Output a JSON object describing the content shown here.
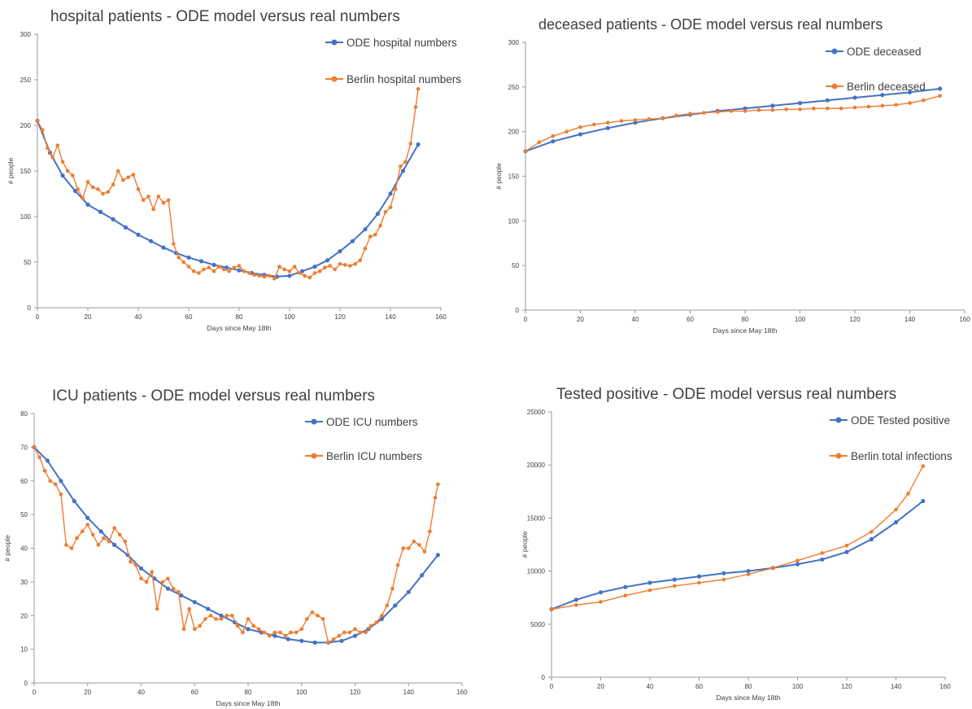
{
  "colors": {
    "ode": "#4472C4",
    "berlin": "#ED7D31",
    "axis": "#999999",
    "text": "#404040"
  },
  "chart_data": [
    {
      "type": "line",
      "title": "hospital patients - ODE model versus real numbers",
      "xlabel": "Days since May 18th",
      "ylabel": "# people",
      "xlim": [
        0,
        160
      ],
      "ylim": [
        0,
        300
      ],
      "xticks": [
        0,
        20,
        40,
        60,
        80,
        100,
        120,
        140,
        160
      ],
      "yticks": [
        0,
        50,
        100,
        150,
        200,
        250,
        300
      ],
      "series": [
        {
          "name": "ODE hospital numbers",
          "x": [
            0,
            5,
            10,
            15,
            20,
            25,
            30,
            35,
            40,
            45,
            50,
            55,
            60,
            65,
            70,
            75,
            80,
            85,
            90,
            95,
            100,
            105,
            110,
            115,
            120,
            125,
            130,
            135,
            140,
            145,
            151
          ],
          "y": [
            205,
            170,
            145,
            128,
            113,
            105,
            97,
            88,
            80,
            73,
            66,
            60,
            55,
            51,
            47,
            44,
            41,
            38,
            36,
            34,
            35,
            40,
            45,
            52,
            62,
            73,
            86,
            103,
            125,
            150,
            179
          ]
        },
        {
          "name": "Berlin hospital numbers",
          "x": [
            0,
            2,
            4,
            6,
            8,
            10,
            12,
            14,
            16,
            18,
            20,
            22,
            24,
            26,
            28,
            30,
            32,
            34,
            36,
            38,
            40,
            42,
            44,
            46,
            48,
            50,
            52,
            54,
            56,
            58,
            60,
            62,
            64,
            66,
            68,
            70,
            72,
            74,
            76,
            78,
            80,
            82,
            84,
            86,
            88,
            90,
            92,
            94,
            96,
            98,
            100,
            102,
            104,
            106,
            108,
            110,
            112,
            114,
            116,
            118,
            120,
            122,
            124,
            126,
            128,
            130,
            132,
            134,
            136,
            138,
            140,
            142,
            144,
            146,
            148,
            150,
            151
          ],
          "y": [
            205,
            195,
            175,
            165,
            178,
            160,
            150,
            145,
            130,
            120,
            138,
            132,
            130,
            125,
            127,
            135,
            150,
            140,
            143,
            146,
            130,
            118,
            122,
            108,
            122,
            115,
            118,
            70,
            55,
            50,
            45,
            40,
            38,
            42,
            44,
            40,
            45,
            42,
            40,
            44,
            46,
            40,
            38,
            36,
            35,
            34,
            35,
            32,
            45,
            42,
            40,
            45,
            38,
            35,
            33,
            38,
            40,
            44,
            46,
            42,
            48,
            47,
            46,
            48,
            52,
            65,
            78,
            80,
            90,
            105,
            110,
            130,
            155,
            160,
            180,
            220,
            240
          ]
        }
      ],
      "legend": "top-right"
    },
    {
      "type": "line",
      "title": "deceased patients - ODE model versus real numbers",
      "xlabel": "Days since May 18th",
      "ylabel": "# people",
      "xlim": [
        0,
        160
      ],
      "ylim": [
        0,
        300
      ],
      "xticks": [
        0,
        20,
        40,
        60,
        80,
        100,
        120,
        140,
        160
      ],
      "yticks": [
        0,
        50,
        100,
        150,
        200,
        250,
        300
      ],
      "series": [
        {
          "name": "ODE deceased",
          "x": [
            0,
            10,
            20,
            30,
            40,
            50,
            60,
            70,
            80,
            90,
            100,
            110,
            120,
            130,
            140,
            151
          ],
          "y": [
            178,
            189,
            197,
            204,
            210,
            215,
            219,
            223,
            226,
            229,
            232,
            235,
            238,
            241,
            244,
            248
          ]
        },
        {
          "name": "Berlin deceased",
          "x": [
            0,
            5,
            10,
            15,
            20,
            25,
            30,
            35,
            40,
            45,
            50,
            55,
            60,
            65,
            70,
            75,
            80,
            85,
            90,
            95,
            100,
            105,
            110,
            115,
            120,
            125,
            130,
            135,
            140,
            145,
            151
          ],
          "y": [
            178,
            188,
            195,
            200,
            205,
            208,
            210,
            212,
            213,
            214,
            215,
            218,
            220,
            221,
            222,
            223,
            223,
            224,
            224,
            225,
            225,
            226,
            226,
            226,
            227,
            228,
            229,
            230,
            232,
            235,
            240
          ]
        }
      ],
      "legend": "top-right"
    },
    {
      "type": "line",
      "title": "ICU patients - ODE model versus real numbers",
      "xlabel": "Days since May 18th",
      "ylabel": "# people",
      "xlim": [
        0,
        160
      ],
      "ylim": [
        0,
        80
      ],
      "xticks": [
        0,
        20,
        40,
        60,
        80,
        100,
        120,
        140,
        160
      ],
      "yticks": [
        0,
        10,
        20,
        30,
        40,
        50,
        60,
        70,
        80
      ],
      "series": [
        {
          "name": "ODE ICU numbers",
          "x": [
            0,
            5,
            10,
            15,
            20,
            25,
            30,
            35,
            40,
            45,
            50,
            55,
            60,
            65,
            70,
            75,
            80,
            85,
            90,
            95,
            100,
            105,
            110,
            115,
            120,
            125,
            130,
            135,
            140,
            145,
            151
          ],
          "y": [
            70,
            66,
            60,
            54,
            49,
            45,
            41,
            38,
            34,
            31,
            28,
            26,
            24,
            22,
            20,
            18,
            16,
            15,
            14,
            13,
            12.5,
            12,
            12,
            12.5,
            14,
            16,
            19,
            23,
            27,
            32,
            38
          ]
        },
        {
          "name": "Berlin ICU numbers",
          "x": [
            0,
            2,
            4,
            6,
            8,
            10,
            12,
            14,
            16,
            18,
            20,
            22,
            24,
            26,
            28,
            30,
            32,
            34,
            36,
            38,
            40,
            42,
            44,
            46,
            48,
            50,
            52,
            54,
            56,
            58,
            60,
            62,
            64,
            66,
            68,
            70,
            72,
            74,
            76,
            78,
            80,
            82,
            84,
            86,
            88,
            90,
            92,
            94,
            96,
            98,
            100,
            102,
            104,
            106,
            108,
            110,
            112,
            114,
            116,
            118,
            120,
            122,
            124,
            126,
            128,
            130,
            132,
            134,
            136,
            138,
            140,
            142,
            144,
            146,
            148,
            150,
            151
          ],
          "y": [
            70,
            67,
            63,
            60,
            59,
            56,
            41,
            40,
            43,
            45,
            47,
            44,
            41,
            43,
            42,
            46,
            44,
            42,
            36,
            35,
            31,
            30,
            33,
            22,
            30,
            31,
            28,
            27,
            16,
            22,
            16,
            17,
            19,
            20,
            19,
            19,
            20,
            20,
            17,
            15,
            19,
            17,
            16,
            15,
            14,
            15,
            15,
            14,
            15,
            15,
            16,
            19,
            21,
            20,
            19,
            12,
            13,
            14,
            15,
            15,
            16,
            15,
            15,
            17,
            18,
            20,
            23,
            28,
            35,
            40,
            40,
            42,
            41,
            39,
            45,
            55,
            59
          ]
        }
      ],
      "legend": "top-right"
    },
    {
      "type": "line",
      "title": "Tested positive - ODE model versus real numbers",
      "xlabel": "Days since May 18th",
      "ylabel": "# people",
      "xlim": [
        0,
        160
      ],
      "ylim": [
        0,
        25000
      ],
      "xticks": [
        0,
        20,
        40,
        60,
        80,
        100,
        120,
        140,
        160
      ],
      "yticks": [
        0,
        5000,
        10000,
        15000,
        20000,
        25000
      ],
      "series": [
        {
          "name": "ODE   Tested positive",
          "x": [
            0,
            10,
            20,
            30,
            40,
            50,
            60,
            70,
            80,
            90,
            100,
            110,
            120,
            130,
            140,
            151
          ],
          "y": [
            6400,
            7300,
            8000,
            8500,
            8900,
            9200,
            9500,
            9800,
            10000,
            10300,
            10650,
            11100,
            11800,
            13000,
            14600,
            16600
          ]
        },
        {
          "name": "Berlin total infections",
          "x": [
            0,
            10,
            20,
            30,
            40,
            50,
            60,
            70,
            80,
            90,
            100,
            110,
            120,
            130,
            140,
            145,
            151
          ],
          "y": [
            6400,
            6800,
            7100,
            7700,
            8200,
            8600,
            8900,
            9200,
            9700,
            10300,
            11000,
            11700,
            12400,
            13700,
            15800,
            17300,
            19900
          ]
        }
      ],
      "legend": "top-right"
    }
  ]
}
